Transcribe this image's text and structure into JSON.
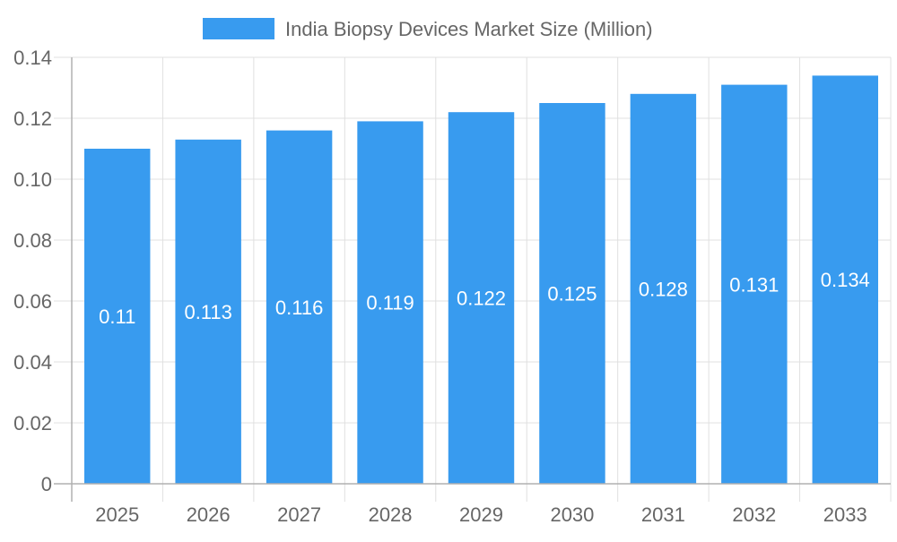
{
  "chart_data": {
    "type": "bar",
    "title": "",
    "xlabel": "",
    "ylabel": "",
    "categories": [
      "2025",
      "2026",
      "2027",
      "2028",
      "2029",
      "2030",
      "2031",
      "2032",
      "2033"
    ],
    "series": [
      {
        "name": "India Biopsy Devices Market Size (Million)",
        "values": [
          0.11,
          0.113,
          0.116,
          0.119,
          0.122,
          0.125,
          0.128,
          0.131,
          0.134
        ],
        "labels": [
          "0.11",
          "0.113",
          "0.116",
          "0.119",
          "0.122",
          "0.125",
          "0.128",
          "0.131",
          "0.134"
        ]
      }
    ],
    "ylim": [
      0,
      0.14
    ],
    "yticks": [
      "0",
      "0.02",
      "0.04",
      "0.06",
      "0.08",
      "0.10",
      "0.12",
      "0.14"
    ],
    "grid": true,
    "legend": "top-center",
    "colors": {
      "bar": "#389bef",
      "grid": "#e0e0e0",
      "axis": "#b0b0b0",
      "text": "#666666",
      "label": "#ffffff"
    }
  }
}
